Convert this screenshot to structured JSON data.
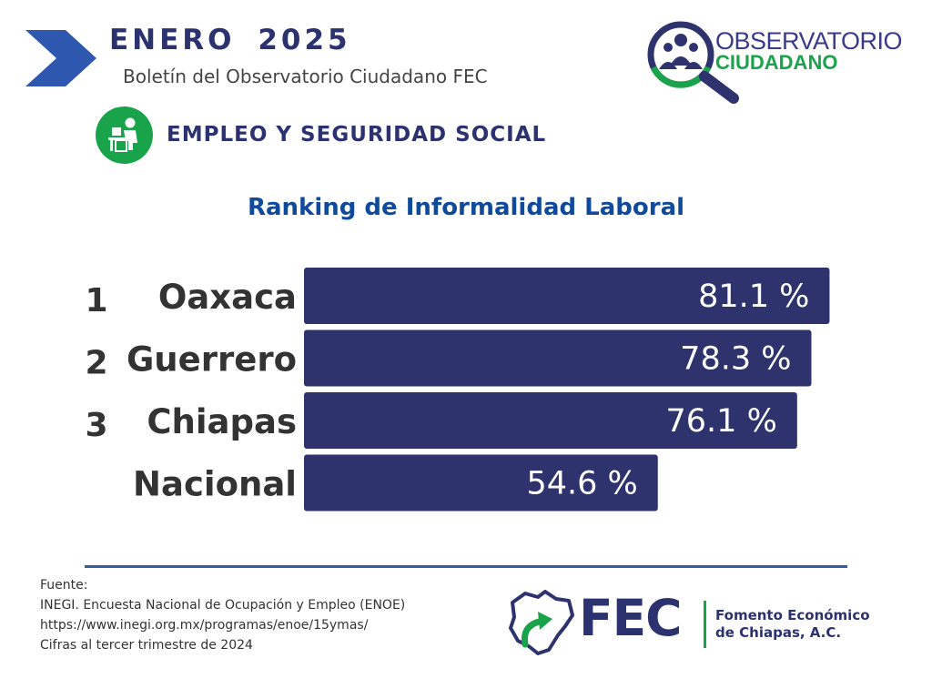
{
  "header": {
    "title": "ENERO 2025",
    "subtitle": "Boletín del Observatorio Ciudadano FEC"
  },
  "observatorio_logo": {
    "line1": "OBSERVATORIO",
    "line2": "CIUDADANO"
  },
  "section": {
    "icon": "desk-worker-icon",
    "title": "EMPLEO Y SEGURIDAD SOCIAL"
  },
  "chart_data": {
    "type": "bar",
    "orientation": "horizontal",
    "title": "Ranking de Informalidad Laboral",
    "ranks": [
      "1",
      "2",
      "3",
      ""
    ],
    "categories": [
      "Oaxaca",
      "Guerrero",
      "Chiapas",
      "Nacional"
    ],
    "values": [
      81.1,
      78.3,
      76.1,
      54.6
    ],
    "value_labels": [
      "81.1 %",
      "78.3 %",
      "76.1 %",
      "54.6 %"
    ],
    "unit": "%",
    "bar_color": "#2e336d",
    "xlim": [
      0,
      100
    ],
    "grid": false,
    "legend": "none"
  },
  "source": {
    "label": "Fuente:",
    "lines": [
      "INEGI. Encuesta Nacional de Ocupación y Empleo (ENOE)",
      "https://www.inegi.org.mx/programas/enoe/15ymas/",
      "Cifras al tercer trimestre de 2024"
    ]
  },
  "fec_logo": {
    "acronym": "FEC",
    "name_line1": "Fomento Económico",
    "name_line2": "de Chiapas, A.C."
  },
  "colors": {
    "navy": "#2e336d",
    "blue_title": "#0f4a9c",
    "green": "#19a34a"
  }
}
